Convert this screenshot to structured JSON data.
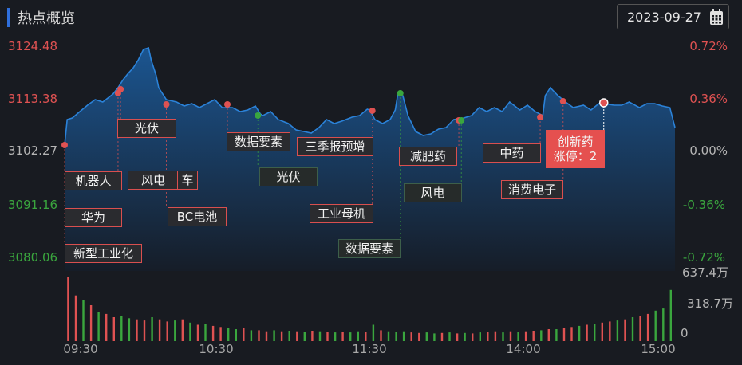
{
  "header": {
    "title": "热点概览",
    "date": "2023-09-27",
    "calendar_icon": "calendar-icon"
  },
  "colors": {
    "up": "#df5252",
    "down": "#3aa63e",
    "flat": "#b5b5b5",
    "line": "#2b82d8",
    "accent": "#2f6fdc",
    "highlight": "#e5504f"
  },
  "chart_data": {
    "type": "line",
    "title": "",
    "y_left_ticks": [
      "3124.48",
      "3113.38",
      "3102.27",
      "3091.16",
      "3080.06"
    ],
    "y_right_ticks": [
      "0.72%",
      "0.36%",
      "0.00%",
      "-0.36%",
      "-0.72%"
    ],
    "ylim": [
      3080.06,
      3124.48
    ],
    "prev_close": 3102.27,
    "x_ticks": [
      "09:30",
      "10:30",
      "11:30",
      "14:00",
      "15:00"
    ],
    "volume_ticks": [
      "637.4万",
      "318.7万",
      "0"
    ],
    "volume_max": 637.4,
    "series": [
      {
        "times": [
          "09:30",
          "09:31",
          "09:33",
          "09:36",
          "09:39",
          "09:42",
          "09:45",
          "09:49",
          "09:51",
          "09:53",
          "09:55",
          "09:57",
          "09:59",
          "10:01",
          "10:03",
          "10:04",
          "10:06",
          "10:07",
          "10:10",
          "10:14",
          "10:17",
          "10:20",
          "10:23",
          "10:26",
          "10:29",
          "10:32",
          "10:36",
          "10:39",
          "10:42",
          "10:45",
          "10:47",
          "10:48",
          "10:51",
          "10:54",
          "10:58",
          "11:01",
          "11:04",
          "11:07",
          "11:10",
          "11:13",
          "11:16",
          "11:19",
          "11:23",
          "11:26",
          "11:29",
          "11:30",
          "13:02",
          "13:05",
          "13:08",
          "13:10",
          "13:11",
          "13:13",
          "13:15",
          "13:18",
          "13:21",
          "13:24",
          "13:27",
          "13:30",
          "13:33",
          "13:37",
          "13:40",
          "13:43",
          "13:46",
          "13:49",
          "13:52",
          "13:55",
          "13:59",
          "14:02",
          "14:05",
          "14:08",
          "14:09",
          "14:11",
          "14:14",
          "14:17",
          "14:20",
          "14:24",
          "14:27",
          "14:30",
          "14:32",
          "14:36",
          "14:39",
          "14:42",
          "14:46",
          "14:49",
          "14:52",
          "14:55",
          "14:58",
          "15:00"
        ],
        "values": [
          3103.45,
          3108.83,
          3109.17,
          3110.52,
          3111.86,
          3113.04,
          3112.54,
          3114.22,
          3115.57,
          3117.25,
          3118.6,
          3119.77,
          3121.46,
          3123.64,
          3123.98,
          3121.46,
          3118.09,
          3115.57,
          3113.04,
          3112.54,
          3111.7,
          3112.2,
          3111.36,
          3112.2,
          3113.04,
          3111.36,
          3111.36,
          3110.52,
          3110.85,
          3111.7,
          3110.01,
          3109.68,
          3110.52,
          3108.83,
          3107.99,
          3106.65,
          3106.31,
          3105.97,
          3107.15,
          3108.83,
          3107.99,
          3108.5,
          3109.34,
          3109.68,
          3111.02,
          3110.85,
          3108.83,
          3107.99,
          3108.83,
          3110.85,
          3114.22,
          3113.88,
          3109.68,
          3106.31,
          3105.47,
          3105.8,
          3106.81,
          3107.15,
          3108.83,
          3109.17,
          3109.68,
          3111.36,
          3110.52,
          3111.36,
          3110.52,
          3112.54,
          3110.85,
          3111.86,
          3110.52,
          3109.68,
          3113.88,
          3115.57,
          3113.88,
          3112.54,
          3111.36,
          3111.86,
          3110.85,
          3112.2,
          3112.2,
          3111.86,
          3111.86,
          3112.54,
          3111.36,
          3112.2,
          3112.2,
          3111.7,
          3111.36,
          3107.15
        ]
      }
    ],
    "volume": {
      "interval_minutes": 3,
      "values": [
        590,
        420,
        380,
        330,
        270,
        250,
        220,
        230,
        210,
        200,
        190,
        220,
        200,
        180,
        190,
        200,
        170,
        150,
        160,
        140,
        130,
        120,
        110,
        120,
        100,
        100,
        90,
        100,
        90,
        95,
        90,
        85,
        95,
        90,
        85,
        80,
        85,
        80,
        90,
        85,
        150,
        100,
        90,
        85,
        90,
        80,
        75,
        80,
        70,
        75,
        80,
        70,
        75,
        70,
        80,
        85,
        90,
        80,
        90,
        85,
        90,
        95,
        100,
        110,
        110,
        120,
        130,
        140,
        150,
        160,
        170,
        180,
        190,
        200,
        220,
        230,
        250,
        280,
        300,
        470
      ],
      "directions": "rrgrgrrggrrgrrgrgrgrrggrgrrgrgrgrgrgrggrgrgggrrggrgrgrgrrgrgrrgrgrrgrgrrgrgrrggg"
    },
    "annotations": [
      {
        "time": "09:30",
        "price": 3103.45,
        "color": "up",
        "labels": [
          "机器人",
          "华为",
          "新型工业化"
        ]
      },
      {
        "time": "09:51",
        "price": 3114.39,
        "color": "up",
        "labels": [
          "风电"
        ]
      },
      {
        "time": "09:52",
        "price": 3115.23,
        "color": "up",
        "labels": [
          "光伏"
        ]
      },
      {
        "time": "10:10",
        "price": 3112.03,
        "color": "up",
        "labels": [
          "车",
          "BC电池"
        ]
      },
      {
        "time": "10:34",
        "price": 3112.03,
        "color": "up",
        "labels": [
          "数据要素"
        ]
      },
      {
        "time": "10:46",
        "price": 3109.68,
        "color": "down",
        "labels": [
          "光伏"
        ]
      },
      {
        "time": "13:01",
        "price": 3110.69,
        "color": "up",
        "labels": [
          "三季报预增",
          "工业母机"
        ]
      },
      {
        "time": "13:12",
        "price": 3114.39,
        "color": "down",
        "labels": [
          "数据要素"
        ]
      },
      {
        "time": "13:35",
        "price": 3108.67,
        "color": "up",
        "labels": [
          "减肥药"
        ]
      },
      {
        "time": "13:36",
        "price": 3108.67,
        "color": "down",
        "labels": [
          "风电"
        ]
      },
      {
        "time": "14:07",
        "price": 3109.34,
        "color": "up",
        "labels": [
          "中药"
        ]
      },
      {
        "time": "14:16",
        "price": 3112.7,
        "color": "up",
        "labels": [
          "消费电子"
        ]
      },
      {
        "time": "14:32",
        "price": 3112.37,
        "color": "up",
        "highlight": true,
        "labels": [
          "创新药",
          "涨停：2"
        ]
      }
    ]
  }
}
